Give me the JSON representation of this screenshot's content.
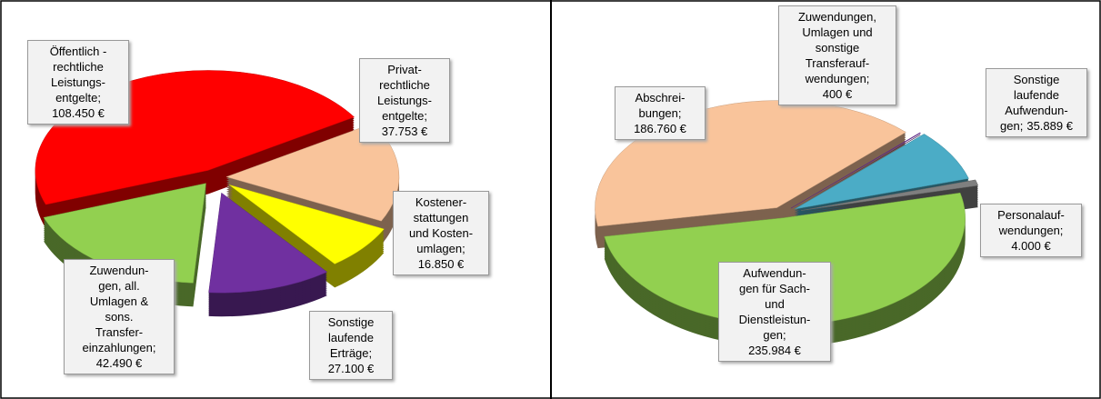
{
  "charts": [
    {
      "type": "pie",
      "categories": [
        "Öffentlich -\nrechtliche\nLeistungs-\nentgelte;",
        "Privat-\nrechtliche\nLeistungs-\nentgelte;",
        "Kostener-\nstattungen\nund Kosten-\numlagen;",
        "Sonstige\nlaufende\nErträge;",
        "Zuwendun-\ngen, all.\nUmlagen &\nsons.\nTransfer-\neinzahlungen;"
      ],
      "values": [
        108450,
        37753,
        16850,
        27100,
        42490
      ],
      "value_labels": [
        "108.450 €",
        "37.753 €",
        "16.850 €",
        "27.100 €",
        "42.490 €"
      ],
      "colors": [
        "#ff0000",
        "#f9c49b",
        "#ffff00",
        "#7030a0",
        "#92d050"
      ]
    },
    {
      "type": "pie",
      "categories": [
        "Abschrei-\nbungen;",
        "Zuwendungen,\nUmlagen und\nsonstige\nTransferauf-\nwendungen;",
        "Sonstige\nlaufende\nAufwendun-\ngen;",
        "Personalauf-\nwendungen;",
        "Aufwendun-\ngen für Sach-\nund\nDienstleistun-\ngen;"
      ],
      "values": [
        186760,
        400,
        35889,
        4000,
        235984
      ],
      "value_labels": [
        "186.760 €",
        "400 €",
        "35.889 €",
        "4.000 €",
        "235.984 €"
      ],
      "colors": [
        "#f9c49b",
        "#7030a0",
        "#4bacc6",
        "#7f7f7f",
        "#92d050"
      ]
    }
  ]
}
